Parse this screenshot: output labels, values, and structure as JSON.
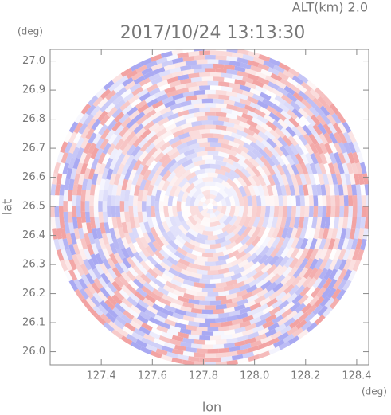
{
  "chart_data": {
    "type": "radar-ppi",
    "annotation": "ALT(km)  2.0",
    "title": "2017/10/24 13:13:30",
    "xlabel": "lon",
    "ylabel": "lat",
    "xunit": "(deg)",
    "yunit": "(deg)",
    "xlim": [
      127.2,
      128.447
    ],
    "ylim": [
      25.955,
      27.04
    ],
    "xticks": [
      127.4,
      127.6,
      {
        "value": 127.8,
        "label": "127.8"
      },
      {
        "value": 128,
        "label": "128.0"
      },
      128.2,
      128.4
    ],
    "yticks": [
      {
        "value": 26,
        "label": "26.0"
      },
      26.1,
      26.2,
      26.3,
      26.4,
      26.5,
      26.6,
      26.7,
      26.8,
      26.9,
      {
        "value": 27,
        "label": "27.0"
      }
    ],
    "colors": [
      "#f2a3a3",
      "#a9a9f2"
    ]
  }
}
